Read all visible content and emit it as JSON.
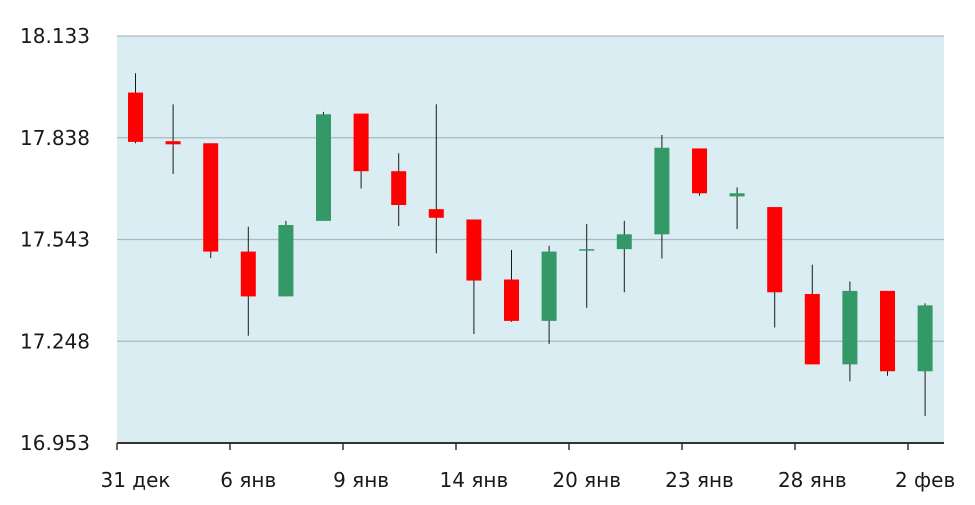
{
  "chart_data": {
    "type": "candlestick",
    "title": "",
    "xlabel": "",
    "ylabel": "",
    "ylim": [
      16.953,
      18.133
    ],
    "yticks": [
      "18.133",
      "17.838",
      "17.543",
      "17.248",
      "16.953"
    ],
    "grid": true,
    "legend": "none",
    "colors": {
      "up": "#339966",
      "down": "#ff0000",
      "plot_bg": "#daedf3",
      "grid": "#a9b9c2",
      "axis": "#333333",
      "wick": "#1a1a1a"
    },
    "x_tick_labels": [
      {
        "label": "31 дек",
        "index": 0
      },
      {
        "label": "6 янв",
        "index": 3
      },
      {
        "label": "9 янв",
        "index": 6
      },
      {
        "label": "14 янв",
        "index": 9
      },
      {
        "label": "20 янв",
        "index": 12
      },
      {
        "label": "23 янв",
        "index": 15
      },
      {
        "label": "28 янв",
        "index": 18
      },
      {
        "label": "2 фев",
        "index": 21
      }
    ],
    "candles": [
      {
        "open": 17.969,
        "high": 18.025,
        "low": 17.822,
        "close": 17.826
      },
      {
        "open": 17.828,
        "high": 17.935,
        "low": 17.733,
        "close": 17.819
      },
      {
        "open": 17.822,
        "high": 17.822,
        "low": 17.489,
        "close": 17.508
      },
      {
        "open": 17.508,
        "high": 17.58,
        "low": 17.264,
        "close": 17.378
      },
      {
        "open": 17.378,
        "high": 17.597,
        "low": 17.378,
        "close": 17.585
      },
      {
        "open": 17.597,
        "high": 17.913,
        "low": 17.597,
        "close": 17.906
      },
      {
        "open": 17.908,
        "high": 17.908,
        "low": 17.691,
        "close": 17.741
      },
      {
        "open": 17.741,
        "high": 17.793,
        "low": 17.582,
        "close": 17.643
      },
      {
        "open": 17.631,
        "high": 17.935,
        "low": 17.503,
        "close": 17.606
      },
      {
        "open": 17.601,
        "high": 17.601,
        "low": 17.269,
        "close": 17.424
      },
      {
        "open": 17.427,
        "high": 17.513,
        "low": 17.304,
        "close": 17.307
      },
      {
        "open": 17.307,
        "high": 17.525,
        "low": 17.24,
        "close": 17.508
      },
      {
        "open": 17.515,
        "high": 17.588,
        "low": 17.345,
        "close": 17.515
      },
      {
        "open": 17.515,
        "high": 17.597,
        "low": 17.39,
        "close": 17.558
      },
      {
        "open": 17.558,
        "high": 17.846,
        "low": 17.488,
        "close": 17.809
      },
      {
        "open": 17.807,
        "high": 17.807,
        "low": 17.67,
        "close": 17.677
      },
      {
        "open": 17.668,
        "high": 17.694,
        "low": 17.573,
        "close": 17.677
      },
      {
        "open": 17.637,
        "high": 17.637,
        "low": 17.288,
        "close": 17.39
      },
      {
        "open": 17.385,
        "high": 17.47,
        "low": 17.181,
        "close": 17.181
      },
      {
        "open": 17.181,
        "high": 17.421,
        "low": 17.132,
        "close": 17.394
      },
      {
        "open": 17.394,
        "high": 17.394,
        "low": 17.148,
        "close": 17.161
      },
      {
        "open": 17.161,
        "high": 17.358,
        "low": 17.031,
        "close": 17.352
      }
    ]
  }
}
